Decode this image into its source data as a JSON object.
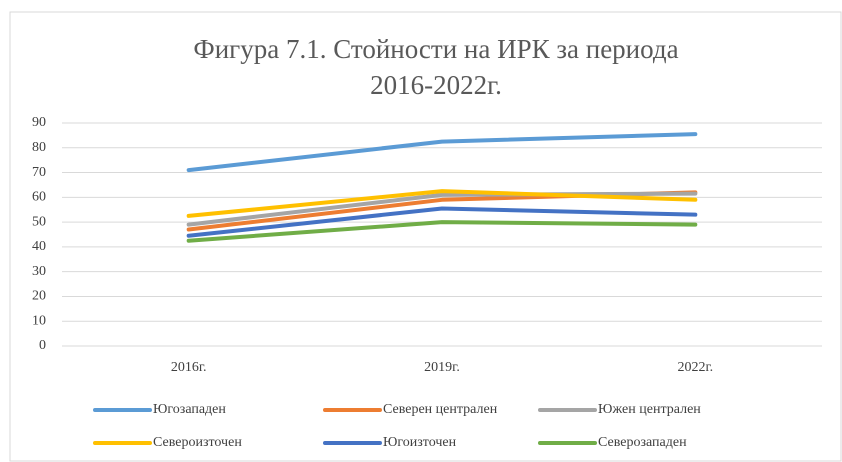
{
  "chart_data": {
    "type": "line",
    "title": [
      "Фигура 7.1. Стойности на ИРК за периода",
      "2016-2022г."
    ],
    "categories": [
      "2016г.",
      "2019г.",
      "2022г."
    ],
    "series": [
      {
        "name": "Югозападен",
        "color": "#5b9bd5",
        "values": [
          71,
          82.5,
          85.5
        ]
      },
      {
        "name": "Северен централен",
        "color": "#ed7d31",
        "values": [
          47,
          59,
          62
        ]
      },
      {
        "name": "Южен централен",
        "color": "#a5a5a5",
        "values": [
          49,
          61,
          61.5
        ]
      },
      {
        "name": "Североизточен",
        "color": "#ffc000",
        "values": [
          52.5,
          62.5,
          59
        ]
      },
      {
        "name": "Югоизточен",
        "color": "#4472c4",
        "values": [
          44.5,
          55.5,
          53
        ]
      },
      {
        "name": "Северозападен",
        "color": "#70ad47",
        "values": [
          42.5,
          50,
          49
        ]
      }
    ],
    "ylim": [
      0,
      90
    ],
    "yticks": [
      0,
      10,
      20,
      30,
      40,
      50,
      60,
      70,
      80,
      90
    ],
    "grid": true
  }
}
